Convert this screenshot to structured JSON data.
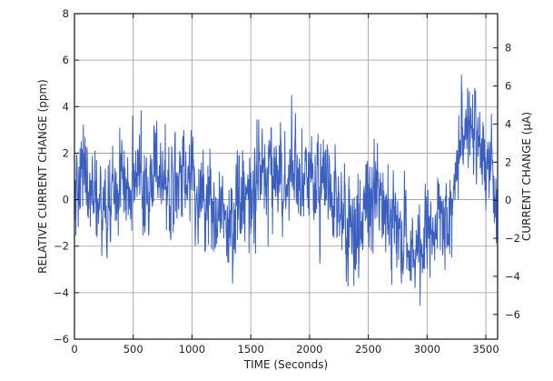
{
  "chart_data": {
    "type": "line",
    "title": "",
    "xlabel": "TIME (Seconds)",
    "ylabel": "RELATIVE CURRENT CHANGE (ppm)",
    "y2label": "CURRENT CHANGE (μA)",
    "xlim": [
      0,
      3600
    ],
    "ylim": [
      -6,
      8
    ],
    "y2lim": [
      -7.3,
      9.8
    ],
    "x_ticks": [
      "0",
      "500",
      "1000",
      "1500",
      "2000",
      "2500",
      "3000",
      "3500"
    ],
    "y_ticks": [
      "−6",
      "−4",
      "−2",
      "0",
      "2",
      "4",
      "6",
      "8"
    ],
    "y2_ticks": [
      "−6",
      "−4",
      "−2",
      "0",
      "2",
      "4",
      "6",
      "8"
    ],
    "grid": true,
    "line_color": "#3a5fc0",
    "series": [
      {
        "name": "",
        "x": [
          0,
          100,
          200,
          300,
          400,
          500,
          600,
          700,
          800,
          900,
          1000,
          1100,
          1200,
          1300,
          1400,
          1500,
          1600,
          1700,
          1800,
          1900,
          2000,
          2100,
          2200,
          2300,
          2400,
          2500,
          2600,
          2700,
          2800,
          2900,
          3000,
          3100,
          3200,
          3300,
          3400,
          3500,
          3600
        ],
        "y": [
          0.2,
          1.2,
          0.0,
          -0.5,
          1.0,
          0.2,
          0.8,
          1.2,
          0.6,
          0.8,
          1.5,
          -0.5,
          0.3,
          -1.0,
          0.2,
          -0.5,
          1.5,
          1.2,
          1.0,
          0.5,
          1.0,
          0.6,
          0.2,
          -0.8,
          -1.5,
          0.0,
          -0.3,
          -1.0,
          -1.6,
          -2.5,
          -2.0,
          -1.0,
          -0.8,
          3.2,
          2.5,
          2.0,
          -0.5
        ],
        "min": -5.8,
        "max": 6.1
      }
    ]
  }
}
